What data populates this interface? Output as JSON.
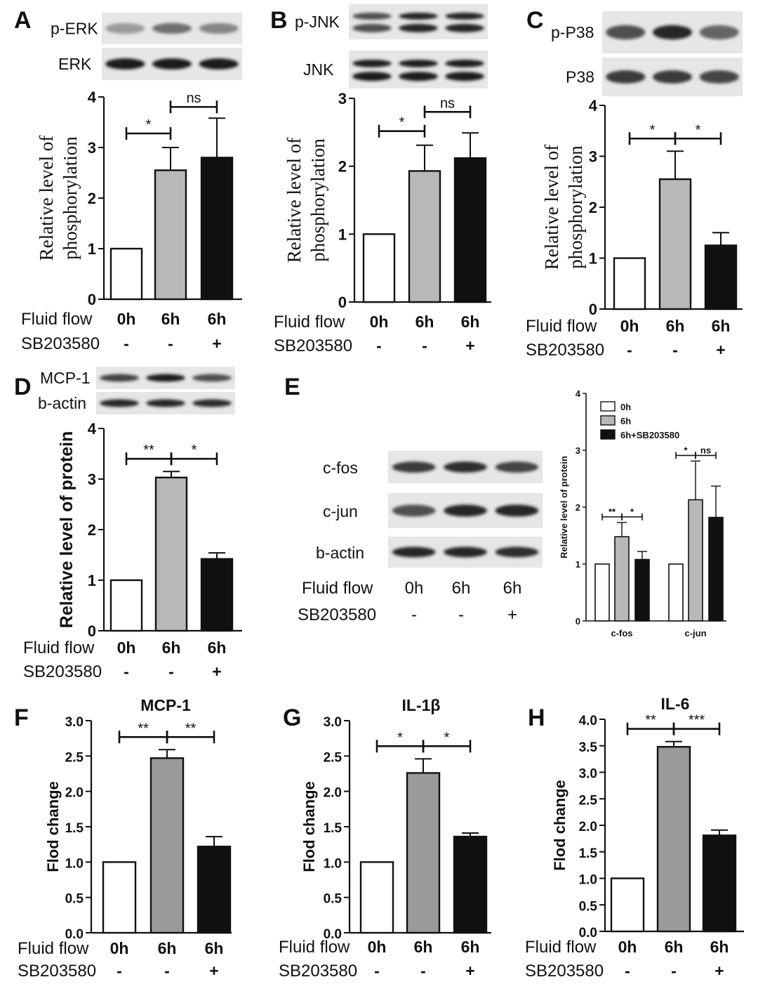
{
  "figure": {
    "panels": [
      {
        "id": "A",
        "blot_labels": [
          "p-ERK",
          "ERK"
        ],
        "row_labels": [
          "Fluid flow",
          "SB203580"
        ],
        "x_conditions": [
          "0h",
          "6h",
          "6h"
        ],
        "sb_conditions": [
          "-",
          "-",
          "+"
        ],
        "significance": [
          {
            "from": 0,
            "to": 1,
            "label": "*"
          },
          {
            "from": 1,
            "to": 2,
            "label": "ns"
          }
        ]
      },
      {
        "id": "B",
        "blot_labels": [
          "p-JNK",
          "JNK"
        ],
        "row_labels": [
          "Fluid flow",
          "SB203580"
        ],
        "x_conditions": [
          "0h",
          "6h",
          "6h"
        ],
        "sb_conditions": [
          "-",
          "-",
          "+"
        ],
        "significance": [
          {
            "from": 0,
            "to": 1,
            "label": "*"
          },
          {
            "from": 1,
            "to": 2,
            "label": "ns"
          }
        ]
      },
      {
        "id": "C",
        "blot_labels": [
          "p-P38",
          "P38"
        ],
        "row_labels": [
          "Fluid flow",
          "SB203580"
        ],
        "x_conditions": [
          "0h",
          "6h",
          "6h"
        ],
        "sb_conditions": [
          "-",
          "-",
          "+"
        ],
        "significance": [
          {
            "from": 0,
            "to": 1,
            "label": "*"
          },
          {
            "from": 1,
            "to": 2,
            "label": "*"
          }
        ]
      },
      {
        "id": "D",
        "blot_labels": [
          "MCP-1",
          "b-actin"
        ],
        "row_labels": [
          "Fluid flow",
          "SB203580"
        ],
        "x_conditions": [
          "0h",
          "6h",
          "6h"
        ],
        "sb_conditions": [
          "-",
          "-",
          "+"
        ],
        "significance": [
          {
            "from": 0,
            "to": 1,
            "label": "**"
          },
          {
            "from": 1,
            "to": 2,
            "label": "*"
          }
        ]
      },
      {
        "id": "E",
        "blot_labels": [
          "c-fos",
          "c-jun",
          "b-actin"
        ],
        "row_labels": [
          "Fluid flow",
          "SB203580"
        ],
        "x_conditions": [
          "0h",
          "6h",
          "6h"
        ],
        "sb_conditions": [
          "-",
          "-",
          "+"
        ],
        "significance": [
          {
            "group": 0,
            "from": 0,
            "to": 1,
            "label": "**"
          },
          {
            "group": 0,
            "from": 1,
            "to": 2,
            "label": "*"
          },
          {
            "group": 1,
            "from": 0,
            "to": 1,
            "label": "*"
          },
          {
            "group": 1,
            "from": 1,
            "to": 2,
            "label": "ns"
          }
        ]
      },
      {
        "id": "F",
        "row_labels": [
          "Fluid flow",
          "SB203580"
        ],
        "x_conditions": [
          "0h",
          "6h",
          "6h"
        ],
        "sb_conditions": [
          "-",
          "-",
          "+"
        ],
        "significance": [
          {
            "from": 0,
            "to": 1,
            "label": "**"
          },
          {
            "from": 1,
            "to": 2,
            "label": "**"
          }
        ]
      },
      {
        "id": "G",
        "row_labels": [
          "Fluid flow",
          "SB203580"
        ],
        "x_conditions": [
          "0h",
          "6h",
          "6h"
        ],
        "sb_conditions": [
          "-",
          "-",
          "+"
        ],
        "significance": [
          {
            "from": 0,
            "to": 1,
            "label": "*"
          },
          {
            "from": 1,
            "to": 2,
            "label": "*"
          }
        ]
      },
      {
        "id": "H",
        "row_labels": [
          "Fluid flow",
          "SB203580"
        ],
        "x_conditions": [
          "0h",
          "6h",
          "6h"
        ],
        "sb_conditions": [
          "-",
          "-",
          "+"
        ],
        "significance": [
          {
            "from": 0,
            "to": 1,
            "label": "**"
          },
          {
            "from": 1,
            "to": 2,
            "label": "***"
          }
        ]
      }
    ]
  },
  "colors": {
    "control": "#ffffff",
    "flow": "#b8b8b8",
    "flow_gray_dark": "#9a9a9a",
    "inhibitor": "#111111"
  },
  "chart_data": [
    {
      "panel": "A",
      "type": "bar",
      "categories": [
        "0h",
        "6h",
        "6h"
      ],
      "values": [
        1.0,
        2.55,
        2.8
      ],
      "errors": [
        0,
        0.45,
        0.78
      ],
      "ylabel": "Relative level of phosphorylation",
      "ylim": [
        0,
        4
      ],
      "yticks": [
        "0",
        "1",
        "2",
        "3",
        "4"
      ]
    },
    {
      "panel": "B",
      "type": "bar",
      "categories": [
        "0h",
        "6h",
        "6h"
      ],
      "values": [
        1.0,
        1.93,
        2.12
      ],
      "errors": [
        0,
        0.38,
        0.37
      ],
      "ylabel": "Relative level of phosphorylation",
      "ylim": [
        0,
        3
      ],
      "yticks": [
        "0",
        "1",
        "2",
        "3"
      ]
    },
    {
      "panel": "C",
      "type": "bar",
      "categories": [
        "0h",
        "6h",
        "6h"
      ],
      "values": [
        1.0,
        2.55,
        1.25
      ],
      "errors": [
        0,
        0.55,
        0.25
      ],
      "ylabel": "Relative level of phosphorylation",
      "ylim": [
        0,
        4
      ],
      "yticks": [
        "0",
        "1",
        "2",
        "3",
        "4"
      ]
    },
    {
      "panel": "D",
      "type": "bar",
      "categories": [
        "0h",
        "6h",
        "6h"
      ],
      "values": [
        1.0,
        3.03,
        1.42
      ],
      "errors": [
        0,
        0.12,
        0.12
      ],
      "ylabel": "Relative level of protein",
      "ylim": [
        0,
        4
      ],
      "yticks": [
        "0",
        "1",
        "2",
        "3",
        "4"
      ]
    },
    {
      "panel": "E",
      "type": "bar",
      "categories": [
        "c-fos",
        "c-jun"
      ],
      "series": [
        {
          "name": "0h",
          "values": [
            1.0,
            1.0
          ],
          "errors": [
            0,
            0
          ]
        },
        {
          "name": "6h",
          "values": [
            1.48,
            2.13
          ],
          "errors": [
            0.25,
            0.68
          ]
        },
        {
          "name": "6h+SB203580",
          "values": [
            1.08,
            1.82
          ],
          "errors": [
            0.14,
            0.55
          ]
        }
      ],
      "ylabel": "Relative level of protein",
      "ylim": [
        0,
        4
      ],
      "yticks": [
        "0",
        "1",
        "2",
        "3",
        "4"
      ],
      "legend": "top-left"
    },
    {
      "panel": "F",
      "type": "bar",
      "title": "MCP-1",
      "categories": [
        "0h",
        "6h",
        "6h"
      ],
      "values": [
        1.0,
        2.47,
        1.22
      ],
      "errors": [
        0,
        0.12,
        0.14
      ],
      "ylabel": "Flod change",
      "ylim": [
        0,
        3
      ],
      "yticks": [
        "0.0",
        "0.5",
        "1.0",
        "1.5",
        "2.0",
        "2.5",
        "3.0"
      ]
    },
    {
      "panel": "G",
      "type": "bar",
      "title": "IL-1β",
      "categories": [
        "0h",
        "6h",
        "6h"
      ],
      "values": [
        1.0,
        2.26,
        1.36
      ],
      "errors": [
        0,
        0.2,
        0.05
      ],
      "ylabel": "Flod change",
      "ylim": [
        0,
        3
      ],
      "yticks": [
        "0.0",
        "0.5",
        "1.0",
        "1.5",
        "2.0",
        "2.5",
        "3.0"
      ]
    },
    {
      "panel": "H",
      "type": "bar",
      "title": "IL-6",
      "categories": [
        "0h",
        "6h",
        "6h"
      ],
      "values": [
        1.0,
        3.48,
        1.81
      ],
      "errors": [
        0,
        0.1,
        0.1
      ],
      "ylabel": "Flod change",
      "ylim": [
        0,
        4
      ],
      "yticks": [
        "0.0",
        "0.5",
        "1.0",
        "1.5",
        "2.0",
        "2.5",
        "3.0",
        "3.5",
        "4.0"
      ]
    }
  ]
}
